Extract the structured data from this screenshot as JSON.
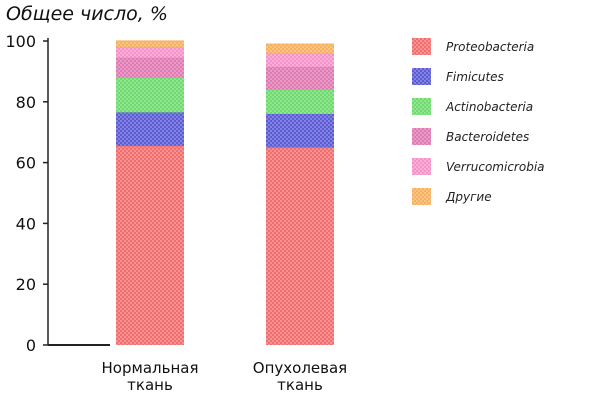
{
  "chart_data": {
    "type": "bar",
    "stacked": true,
    "ylabel": "Общее число, %",
    "xlabel": "",
    "ylim": [
      0,
      100
    ],
    "yticks": [
      "0",
      "20",
      "40",
      "60",
      "80",
      "100"
    ],
    "categories": [
      [
        "Нормальная",
        "ткань"
      ],
      [
        "Опухолевая",
        "ткань"
      ]
    ],
    "series": [
      {
        "name": "Proteobacteria",
        "color": "#f26d6d",
        "values": [
          65.5,
          65
        ]
      },
      {
        "name": "Fimicutes",
        "color": "#5b5bd6",
        "values": [
          11,
          11
        ]
      },
      {
        "name": "Actinobacteria",
        "color": "#6ddb6d",
        "values": [
          11.5,
          8
        ]
      },
      {
        "name": "Bacteroidetes",
        "color": "#e07ab3",
        "values": [
          6.5,
          7.5
        ]
      },
      {
        "name": "Verrucomicrobia",
        "color": "#f593c8",
        "values": [
          3.5,
          4.5
        ]
      },
      {
        "name": "Другие",
        "color": "#f5b060",
        "values": [
          2,
          3
        ]
      }
    ],
    "legend_position": "right"
  }
}
